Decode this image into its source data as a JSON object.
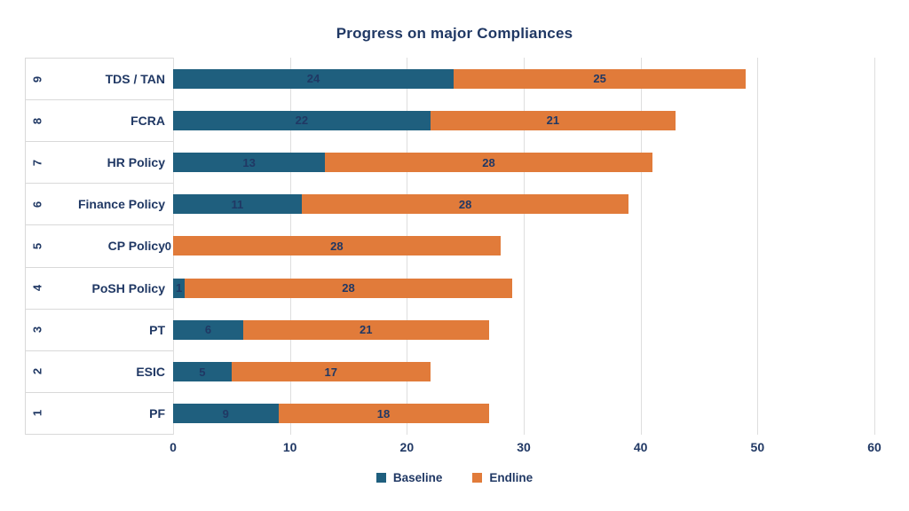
{
  "chart_data": {
    "type": "bar",
    "orientation": "horizontal",
    "stacked": true,
    "title": "Progress on major Compliances",
    "categories": [
      "TDS / TAN",
      "FCRA",
      "HR Policy",
      "Finance Policy",
      "CP Policy",
      "PoSH Policy",
      "PT",
      "ESIC",
      "PF"
    ],
    "category_numbers": [
      "9",
      "8",
      "7",
      "6",
      "5",
      "4",
      "3",
      "2",
      "1"
    ],
    "series": [
      {
        "name": "Baseline",
        "color": "#1f5f7e",
        "values": [
          24,
          22,
          13,
          11,
          0,
          1,
          6,
          5,
          9
        ]
      },
      {
        "name": "Endline",
        "color": "#e17b3a",
        "values": [
          25,
          21,
          28,
          28,
          28,
          28,
          21,
          17,
          18
        ]
      }
    ],
    "xlabel": "",
    "ylabel": "",
    "xlim": [
      0,
      60
    ],
    "xticks": [
      0,
      10,
      20,
      30,
      40,
      50,
      60
    ],
    "grid": "vertical-only",
    "legend_position": "bottom",
    "colors": {
      "text": "#203864",
      "gridline": "#dedede"
    }
  }
}
